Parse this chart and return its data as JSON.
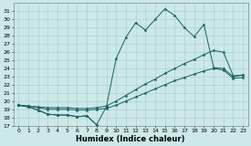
{
  "xlabel": "Humidex (Indice chaleur)",
  "x": [
    0,
    1,
    2,
    3,
    4,
    5,
    6,
    7,
    8,
    9,
    10,
    11,
    12,
    13,
    14,
    15,
    16,
    17,
    18,
    19,
    20,
    21,
    22,
    23
  ],
  "line_peak": [
    19.5,
    19.3,
    18.9,
    18.4,
    18.3,
    18.3,
    18.1,
    18.2,
    17.1,
    19.3,
    25.2,
    27.8,
    29.6,
    28.7,
    30.0,
    31.3,
    30.5,
    29.0,
    27.9,
    29.4,
    24.1,
    24.0,
    23.0,
    23.2
  ],
  "line_low_short": [
    19.5,
    19.3,
    18.9,
    18.4,
    18.3,
    18.3,
    18.1,
    18.2,
    17.1,
    null,
    null,
    null,
    null,
    null,
    null,
    null,
    null,
    null,
    null,
    null,
    null,
    null,
    null,
    null
  ],
  "line_upper": [
    19.5,
    19.4,
    19.3,
    19.2,
    19.2,
    19.2,
    19.1,
    19.1,
    19.2,
    19.4,
    20.0,
    20.7,
    21.4,
    22.1,
    22.7,
    23.4,
    24.0,
    24.6,
    25.1,
    25.7,
    26.2,
    26.0,
    23.1,
    23.2
  ],
  "line_lower": [
    19.5,
    19.4,
    19.2,
    19.0,
    19.0,
    19.0,
    18.9,
    18.9,
    19.0,
    19.1,
    19.5,
    20.0,
    20.5,
    21.0,
    21.5,
    22.0,
    22.5,
    22.9,
    23.3,
    23.7,
    24.0,
    23.8,
    22.8,
    22.9
  ],
  "ylim": [
    17,
    32
  ],
  "yticks": [
    17,
    18,
    19,
    20,
    21,
    22,
    23,
    24,
    25,
    26,
    27,
    28,
    29,
    30,
    31
  ],
  "bg_color": "#cce8e8",
  "grid_color": "#aacccc",
  "line_color": "#1a6060",
  "marker_size": 2.5
}
